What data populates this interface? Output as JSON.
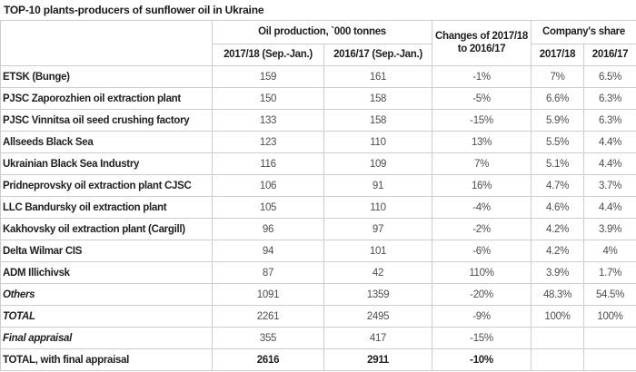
{
  "title": "TOP-10 plants-producers of sunflower oil in Ukraine",
  "chart_data": {
    "type": "table",
    "title": "TOP-10 plants-producers of sunflower oil in Ukraine",
    "header_groups": {
      "oil_production": "Oil production, `000 tonnes",
      "changes": "Changes of 2017/18 to 2016/17",
      "company_share": "Company's share"
    },
    "subheaders": {
      "prod_2017_18": "2017/18 (Sep.-Jan.)",
      "prod_2016_17": "2016/17 (Sep.-Jan.)",
      "share_2017_18": "2017/18",
      "share_2016_17": "2016/17"
    },
    "rows": [
      {
        "name": "ETSK (Bunge)",
        "prod_2017_18": "159",
        "prod_2016_17": "161",
        "change": "-1%",
        "share_2017_18": "7%",
        "share_2016_17": "6.5%",
        "style": "normal"
      },
      {
        "name": "PJSC Zaporozhien oil extraction plant",
        "prod_2017_18": "150",
        "prod_2016_17": "158",
        "change": "-5%",
        "share_2017_18": "6.6%",
        "share_2016_17": "6.3%",
        "style": "normal"
      },
      {
        "name": "PJSC Vinnitsa oil seed crushing factory",
        "prod_2017_18": "133",
        "prod_2016_17": "158",
        "change": "-15%",
        "share_2017_18": "5.9%",
        "share_2016_17": "6.3%",
        "style": "normal"
      },
      {
        "name": "Allseeds Black Sea",
        "prod_2017_18": "123",
        "prod_2016_17": "110",
        "change": "13%",
        "share_2017_18": "5.5%",
        "share_2016_17": "4.4%",
        "style": "normal"
      },
      {
        "name": "Ukrainian Black Sea Industry",
        "prod_2017_18": "116",
        "prod_2016_17": "109",
        "change": "7%",
        "share_2017_18": "5.1%",
        "share_2016_17": "4.4%",
        "style": "normal"
      },
      {
        "name": "Pridneprovsky oil extraction plant CJSC",
        "prod_2017_18": "106",
        "prod_2016_17": "91",
        "change": "16%",
        "share_2017_18": "4.7%",
        "share_2016_17": "3.7%",
        "style": "normal"
      },
      {
        "name": "LLC Bandursky oil extraction plant",
        "prod_2017_18": "105",
        "prod_2016_17": "110",
        "change": "-4%",
        "share_2017_18": "4.6%",
        "share_2016_17": "4.4%",
        "style": "normal"
      },
      {
        "name": "Kakhovsky oil extraction plant (Cargill)",
        "prod_2017_18": "96",
        "prod_2016_17": "97",
        "change": "-2%",
        "share_2017_18": "4.2%",
        "share_2016_17": "3.9%",
        "style": "normal"
      },
      {
        "name": "Delta Wilmar CIS",
        "prod_2017_18": "94",
        "prod_2016_17": "101",
        "change": "-6%",
        "share_2017_18": "4.2%",
        "share_2016_17": "4%",
        "style": "normal"
      },
      {
        "name": "ADM Illichivsk",
        "prod_2017_18": "87",
        "prod_2016_17": "42",
        "change": "110%",
        "share_2017_18": "3.9%",
        "share_2016_17": "1.7%",
        "style": "normal"
      },
      {
        "name": "Others",
        "prod_2017_18": "1091",
        "prod_2016_17": "1359",
        "change": "-20%",
        "share_2017_18": "48.3%",
        "share_2016_17": "54.5%",
        "style": "summary-italic"
      },
      {
        "name": "TOTAL",
        "prod_2017_18": "2261",
        "prod_2016_17": "2495",
        "change": "-9%",
        "share_2017_18": "100%",
        "share_2016_17": "100%",
        "style": "summary-italic"
      },
      {
        "name": "Final appraisal",
        "prod_2017_18": "355",
        "prod_2016_17": "417",
        "change": "-15%",
        "share_2017_18": "",
        "share_2016_17": "",
        "style": "summary-italic"
      },
      {
        "name": "TOTAL, with final appraisal",
        "prod_2017_18": "2616",
        "prod_2016_17": "2911",
        "change": "-10%",
        "share_2017_18": "",
        "share_2016_17": "",
        "style": "summary-bold"
      }
    ]
  }
}
